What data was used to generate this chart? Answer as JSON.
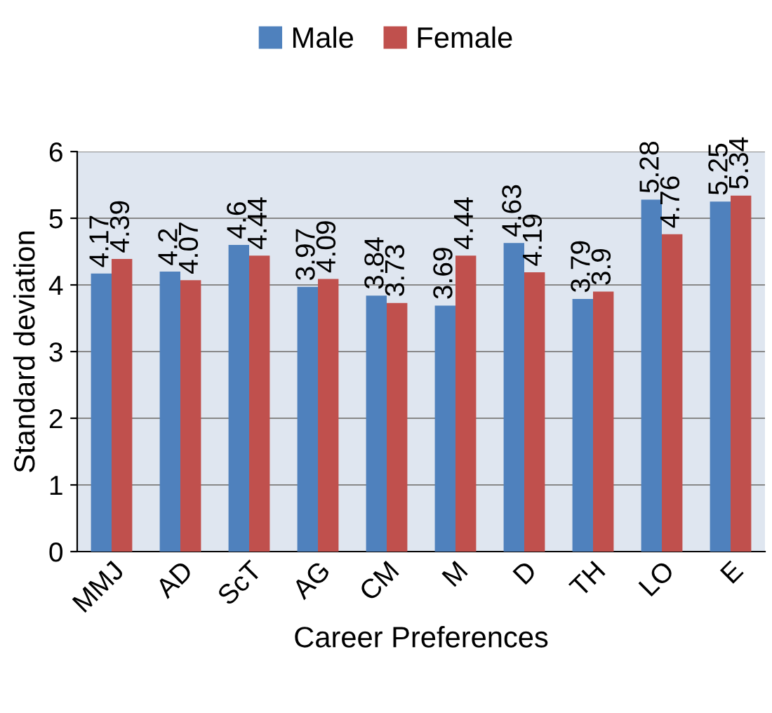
{
  "chart_data": {
    "type": "bar",
    "xlabel": "Career Preferences",
    "ylabel": "Standard deviation",
    "categories": [
      "MMJ",
      "AD",
      "ScT",
      "AG",
      "CM",
      "M",
      "D",
      "TH",
      "LO",
      "E"
    ],
    "series": [
      {
        "name": "Male",
        "color": "#4f81bd",
        "values": [
          4.17,
          4.2,
          4.6,
          3.97,
          3.84,
          3.69,
          4.63,
          3.79,
          5.28,
          5.25
        ]
      },
      {
        "name": "Female",
        "color": "#c0504d",
        "values": [
          4.39,
          4.07,
          4.44,
          4.09,
          3.73,
          4.44,
          4.19,
          3.9,
          4.76,
          5.34
        ]
      }
    ],
    "ylim": [
      0,
      6
    ],
    "yticks": [
      0,
      1,
      2,
      3,
      4,
      5,
      6
    ],
    "grid": "y",
    "legend": "top",
    "data_labels": true
  }
}
